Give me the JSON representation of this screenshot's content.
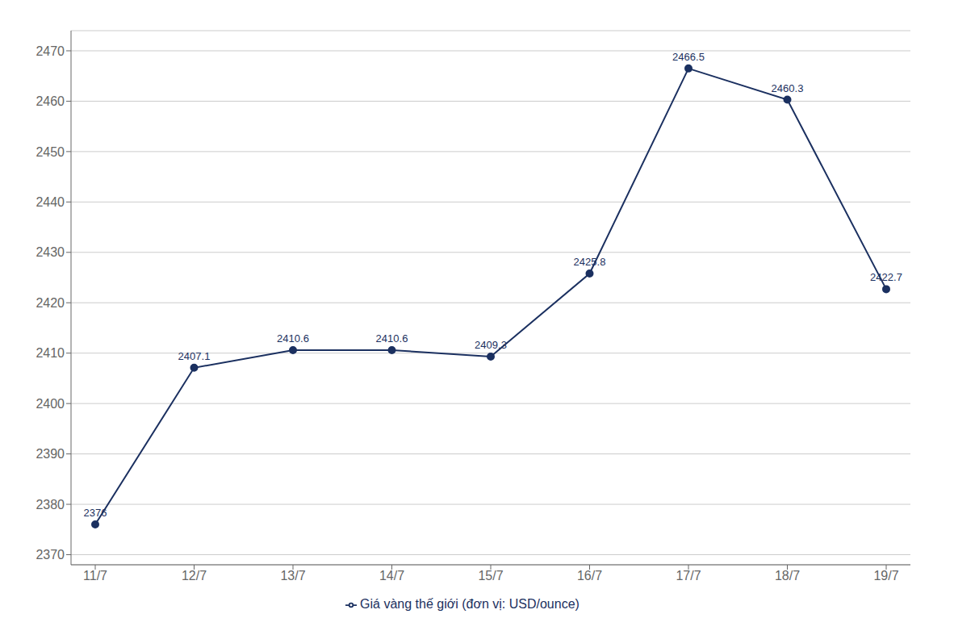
{
  "chart_data": {
    "type": "line",
    "categories": [
      "11/7",
      "12/7",
      "13/7",
      "14/7",
      "15/7",
      "16/7",
      "17/7",
      "18/7",
      "19/7"
    ],
    "series": [
      {
        "name": "Giá vàng thế giới (đơn vị: USD/ounce)",
        "color": "#1b3060",
        "marker": "circle",
        "values": [
          2376.0,
          2407.1,
          2410.6,
          2410.6,
          2409.3,
          2425.8,
          2466.5,
          2460.3,
          2422.7
        ]
      }
    ],
    "ylim": [
      2368,
      2474
    ],
    "yticks": [
      2370,
      2380,
      2390,
      2400,
      2410,
      2420,
      2430,
      2440,
      2450,
      2460,
      2470
    ],
    "grid": true,
    "legend": "bottom",
    "data_labels": true
  }
}
